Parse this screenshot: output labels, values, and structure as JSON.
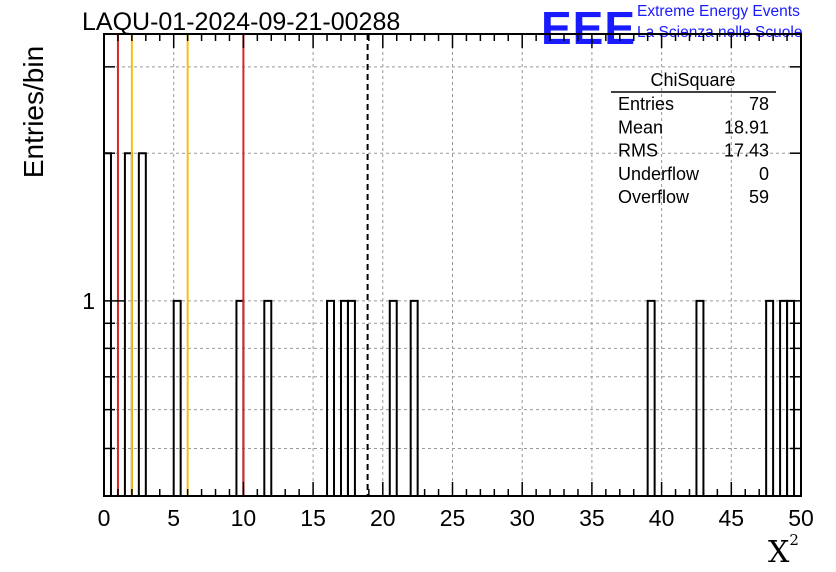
{
  "chart_data": {
    "type": "bar",
    "title": "LAQU-01-2024-09-21-00288",
    "xlabel": "X",
    "xlabel_superscript": "2",
    "ylabel": "Entries/bin",
    "xlim": [
      0,
      50
    ],
    "ylim": [
      0.4,
      3.5
    ],
    "y_scale": "log",
    "grid": true,
    "bin_width": 0.5,
    "x_ticks": [
      "0",
      "5",
      "10",
      "15",
      "20",
      "25",
      "30",
      "35",
      "40",
      "45",
      "50"
    ],
    "y_tick_labels": [
      "1"
    ],
    "bins": [
      {
        "x": 0.0,
        "y": 2
      },
      {
        "x": 1.5,
        "y": 2
      },
      {
        "x": 2.5,
        "y": 2
      },
      {
        "x": 5.0,
        "y": 1
      },
      {
        "x": 9.5,
        "y": 1
      },
      {
        "x": 11.5,
        "y": 1
      },
      {
        "x": 16.0,
        "y": 1
      },
      {
        "x": 17.0,
        "y": 1
      },
      {
        "x": 17.5,
        "y": 1
      },
      {
        "x": 20.5,
        "y": 1
      },
      {
        "x": 22.0,
        "y": 1
      },
      {
        "x": 39.0,
        "y": 1
      },
      {
        "x": 42.5,
        "y": 1
      },
      {
        "x": 47.5,
        "y": 1
      },
      {
        "x": 48.5,
        "y": 1
      },
      {
        "x": 49.0,
        "y": 1
      }
    ],
    "vertical_lines": [
      {
        "x": 1.0,
        "color": "#d62728",
        "style": "solid"
      },
      {
        "x": 2.0,
        "color": "#f2c01a",
        "style": "solid"
      },
      {
        "x": 6.0,
        "color": "#f2c01a",
        "style": "solid"
      },
      {
        "x": 10.0,
        "color": "#d62728",
        "style": "solid"
      },
      {
        "x": 18.91,
        "color": "#000000",
        "style": "dashed"
      }
    ],
    "stats_box": {
      "name": "ChiSquare",
      "rows": [
        {
          "label": "Entries",
          "value": "78"
        },
        {
          "label": "Mean",
          "value": "18.91"
        },
        {
          "label": "RMS",
          "value": "17.43"
        },
        {
          "label": "Underflow",
          "value": "0"
        },
        {
          "label": "Overflow",
          "value": "59"
        }
      ]
    }
  },
  "logo": {
    "text": "EEE",
    "line1": "Extreme Energy Events",
    "line2": "La Scienza nelle Scuole",
    "color": "#1a1aff"
  }
}
